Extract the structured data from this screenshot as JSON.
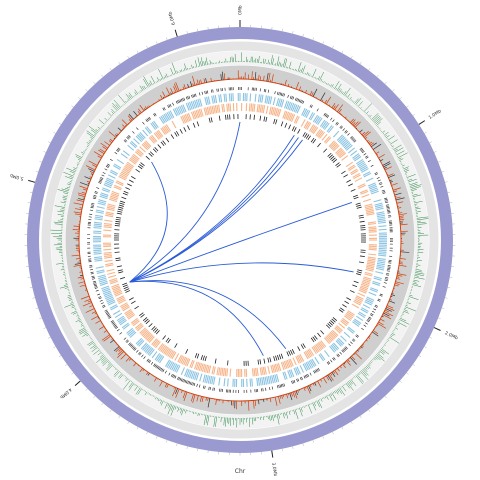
{
  "chromosome": {
    "label": "Chr",
    "length_mb": 6.3,
    "major_ticks": [
      {
        "mb": 0,
        "label": "0Mb"
      },
      {
        "mb": 1,
        "label": "1.0Mb"
      },
      {
        "mb": 2,
        "label": "2.0Mb"
      },
      {
        "mb": 3,
        "label": "3.0Mb"
      },
      {
        "mb": 4,
        "label": "4.0Mb"
      },
      {
        "mb": 5,
        "label": "5.0Mb"
      },
      {
        "mb": 6,
        "label": "6.0Mb"
      }
    ]
  },
  "tracks": [
    {
      "name": "ideogram",
      "color": "#9a9ad0"
    },
    {
      "name": "gc-content",
      "color": "#2e8b4a"
    },
    {
      "name": "gc-skew",
      "color": "#d2420f"
    },
    {
      "name": "genes-forward",
      "color": "#8cc4e2"
    },
    {
      "name": "genes-reverse",
      "color": "#f7b58a"
    },
    {
      "name": "ncrna",
      "color": "#222222"
    }
  ],
  "link_color": "#2a5bd6",
  "links": [
    {
      "from_mb": 4.36,
      "to_mb": 6.3
    },
    {
      "from_mb": 4.36,
      "to_mb": 5.45
    },
    {
      "from_mb": 4.36,
      "to_mb": 0.48
    },
    {
      "from_mb": 4.36,
      "to_mb": 0.52
    },
    {
      "from_mb": 4.36,
      "to_mb": 0.56
    },
    {
      "from_mb": 4.36,
      "to_mb": 1.25
    },
    {
      "from_mb": 4.36,
      "to_mb": 1.85
    },
    {
      "from_mb": 4.36,
      "to_mb": 2.75
    },
    {
      "from_mb": 4.36,
      "to_mb": 2.95
    }
  ]
}
